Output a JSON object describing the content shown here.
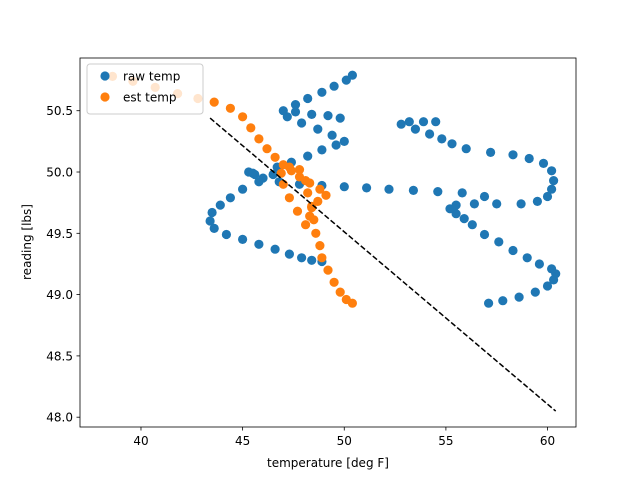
{
  "chart_data": {
    "type": "scatter",
    "xlabel": "temperature [deg F]",
    "ylabel": "reading [lbs]",
    "xlim": [
      37.0,
      61.4
    ],
    "ylim": [
      47.92,
      50.93
    ],
    "x_ticks": [
      40,
      45,
      50,
      55,
      60
    ],
    "y_ticks": [
      48.0,
      48.5,
      49.0,
      49.5,
      50.0,
      50.5
    ],
    "x_tick_labels": [
      "40",
      "45",
      "50",
      "55",
      "60"
    ],
    "y_tick_labels": [
      "48.0",
      "48.5",
      "49.0",
      "49.5",
      "50.0",
      "50.5"
    ],
    "grid": false,
    "legend_position": "top-left",
    "series": [
      {
        "name": "raw temp",
        "kind": "scatter",
        "color": "#1f77b4",
        "points": [
          [
            57.1,
            48.93
          ],
          [
            57.8,
            48.95
          ],
          [
            58.6,
            48.98
          ],
          [
            59.4,
            49.02
          ],
          [
            60.0,
            49.07
          ],
          [
            60.3,
            49.12
          ],
          [
            60.4,
            49.17
          ],
          [
            60.2,
            49.21
          ],
          [
            59.6,
            49.25
          ],
          [
            59.0,
            49.3
          ],
          [
            58.3,
            49.36
          ],
          [
            57.6,
            49.43
          ],
          [
            56.9,
            49.49
          ],
          [
            56.3,
            49.57
          ],
          [
            55.9,
            49.62
          ],
          [
            55.5,
            49.66
          ],
          [
            55.2,
            49.7
          ],
          [
            55.5,
            49.73
          ],
          [
            56.4,
            49.74
          ],
          [
            57.5,
            49.74
          ],
          [
            58.7,
            49.74
          ],
          [
            59.5,
            49.76
          ],
          [
            60.0,
            49.8
          ],
          [
            60.2,
            49.86
          ],
          [
            60.3,
            49.93
          ],
          [
            60.2,
            50.01
          ],
          [
            59.8,
            50.07
          ],
          [
            59.1,
            50.11
          ],
          [
            58.3,
            50.14
          ],
          [
            57.2,
            50.16
          ],
          [
            56.0,
            50.19
          ],
          [
            55.3,
            50.23
          ],
          [
            54.8,
            50.27
          ],
          [
            54.2,
            50.31
          ],
          [
            53.5,
            50.35
          ],
          [
            52.8,
            50.39
          ],
          [
            53.2,
            50.41
          ],
          [
            53.9,
            50.41
          ],
          [
            54.5,
            50.41
          ],
          [
            52.2,
            49.86
          ],
          [
            53.4,
            49.85
          ],
          [
            54.6,
            49.84
          ],
          [
            55.8,
            49.83
          ],
          [
            56.9,
            49.8
          ],
          [
            51.1,
            49.87
          ],
          [
            50.0,
            49.88
          ],
          [
            48.9,
            49.89
          ],
          [
            47.8,
            49.9
          ],
          [
            46.8,
            49.92
          ],
          [
            46.0,
            49.95
          ],
          [
            45.6,
            49.98
          ],
          [
            45.3,
            50.0
          ],
          [
            45.5,
            49.99
          ],
          [
            46.5,
            49.98
          ],
          [
            45.8,
            49.92
          ],
          [
            45.0,
            49.86
          ],
          [
            44.4,
            49.79
          ],
          [
            43.9,
            49.73
          ],
          [
            43.5,
            49.67
          ],
          [
            43.4,
            49.6
          ],
          [
            43.6,
            49.54
          ],
          [
            44.2,
            49.49
          ],
          [
            45.0,
            49.45
          ],
          [
            45.8,
            49.41
          ],
          [
            46.6,
            49.37
          ],
          [
            47.3,
            49.33
          ],
          [
            47.9,
            49.3
          ],
          [
            48.4,
            49.28
          ],
          [
            48.9,
            49.27
          ],
          [
            46.7,
            50.04
          ],
          [
            47.4,
            50.08
          ],
          [
            48.2,
            50.13
          ],
          [
            48.9,
            50.18
          ],
          [
            49.6,
            50.22
          ],
          [
            50.0,
            50.25
          ],
          [
            49.4,
            50.3
          ],
          [
            48.7,
            50.35
          ],
          [
            47.9,
            50.4
          ],
          [
            47.2,
            50.45
          ],
          [
            47.0,
            50.5
          ],
          [
            47.6,
            50.49
          ],
          [
            48.4,
            50.47
          ],
          [
            49.2,
            50.46
          ],
          [
            49.8,
            50.44
          ],
          [
            47.6,
            50.55
          ],
          [
            48.2,
            50.6
          ],
          [
            48.9,
            50.65
          ],
          [
            49.5,
            50.7
          ],
          [
            50.1,
            50.75
          ],
          [
            50.4,
            50.79
          ]
        ]
      },
      {
        "name": "est temp",
        "kind": "scatter",
        "color": "#ff7f0e",
        "points": [
          [
            38.6,
            50.78
          ],
          [
            39.6,
            50.74
          ],
          [
            40.7,
            50.69
          ],
          [
            41.8,
            50.64
          ],
          [
            42.8,
            50.6
          ],
          [
            43.6,
            50.57
          ],
          [
            44.4,
            50.52
          ],
          [
            45.0,
            50.45
          ],
          [
            45.4,
            50.36
          ],
          [
            45.8,
            50.27
          ],
          [
            46.2,
            50.19
          ],
          [
            46.6,
            50.12
          ],
          [
            47.0,
            50.06
          ],
          [
            47.4,
            50.01
          ],
          [
            47.8,
            49.96
          ],
          [
            48.3,
            49.91
          ],
          [
            48.8,
            49.86
          ],
          [
            49.1,
            49.81
          ],
          [
            48.7,
            49.76
          ],
          [
            48.4,
            49.71
          ],
          [
            48.3,
            49.64
          ],
          [
            48.1,
            49.57
          ],
          [
            47.7,
            49.68
          ],
          [
            47.3,
            49.79
          ],
          [
            47.0,
            49.9
          ],
          [
            46.9,
            49.99
          ],
          [
            47.3,
            50.04
          ],
          [
            47.8,
            50.02
          ],
          [
            48.1,
            49.93
          ],
          [
            48.2,
            49.83
          ],
          [
            48.4,
            49.72
          ],
          [
            48.5,
            49.61
          ],
          [
            48.6,
            49.5
          ],
          [
            48.8,
            49.4
          ],
          [
            48.9,
            49.3
          ],
          [
            49.2,
            49.2
          ],
          [
            49.5,
            49.1
          ],
          [
            49.8,
            49.02
          ],
          [
            50.1,
            48.96
          ],
          [
            50.4,
            48.93
          ]
        ]
      },
      {
        "name": "",
        "kind": "line",
        "color": "#000000",
        "dashed": true,
        "points": [
          [
            43.4,
            50.44
          ],
          [
            60.4,
            48.05
          ]
        ]
      }
    ]
  }
}
